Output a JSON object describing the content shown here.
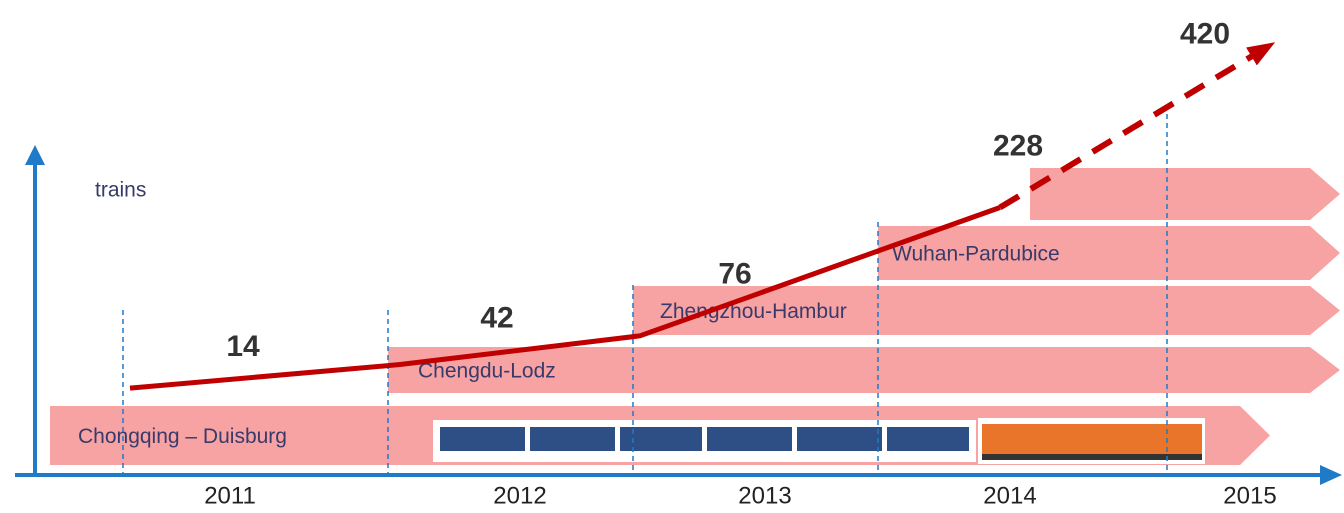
{
  "chart_data": {
    "type": "line",
    "y_label": "trains",
    "categories": [
      "2011",
      "2012",
      "2013",
      "2014",
      "2015"
    ],
    "values": [
      14,
      42,
      76,
      228,
      420
    ],
    "color": "#c00000",
    "ylim": [
      0,
      450
    ],
    "routes": [
      "Chongqing – Duisburg",
      "Chengdu-Lodz",
      "Zhengzhou-Hambur",
      "Wuhan-Pardubice"
    ],
    "route_color": "#f7a3a3"
  }
}
